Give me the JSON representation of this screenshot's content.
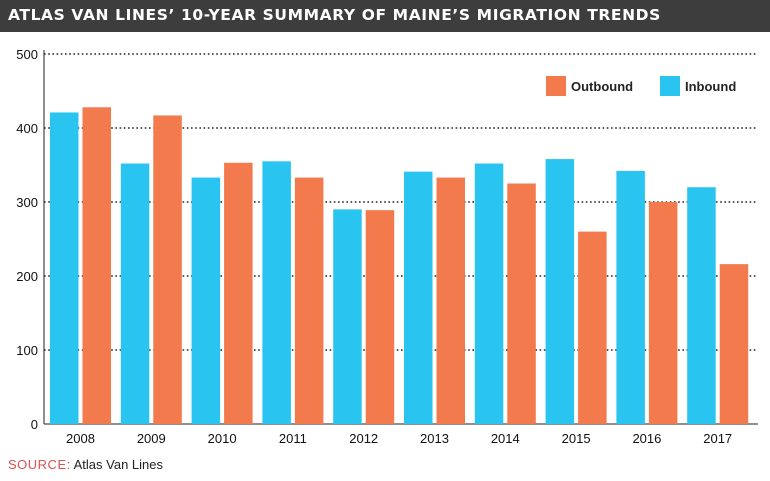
{
  "header": {
    "title": "ATLAS VAN LINES’ 10-YEAR SUMMARY OF MAINE’S MIGRATION TRENDS"
  },
  "footer": {
    "source_label": "SOURCE:",
    "source_value": "Atlas Van Lines"
  },
  "colors": {
    "inbound": "#29c4f0",
    "outbound": "#f27a4d",
    "header_bg": "#3d3d3d",
    "source_label": "#d9534f"
  },
  "chart_data": {
    "type": "bar",
    "title": "ATLAS VAN LINES’ 10-YEAR SUMMARY OF MAINE’S MIGRATION TRENDS",
    "categories": [
      "2008",
      "2009",
      "2010",
      "2011",
      "2012",
      "2013",
      "2014",
      "2015",
      "2016",
      "2017"
    ],
    "series": [
      {
        "name": "Inbound",
        "values": [
          421,
          352,
          333,
          355,
          290,
          341,
          352,
          358,
          342,
          320
        ]
      },
      {
        "name": "Outbound",
        "values": [
          428,
          417,
          353,
          333,
          289,
          333,
          325,
          260,
          300,
          216
        ]
      }
    ],
    "legend_order": [
      "Outbound",
      "Inbound"
    ],
    "yticks": [
      0,
      100,
      200,
      300,
      400,
      500
    ],
    "ylim": [
      0,
      500
    ],
    "xlabel": "",
    "ylabel": "",
    "grid": "horizontal dotted",
    "legend_position": "top-right"
  }
}
